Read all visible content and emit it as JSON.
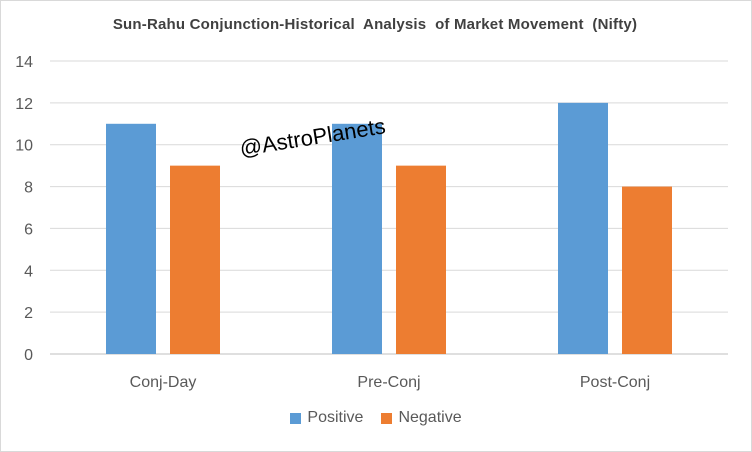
{
  "chart_data": {
    "type": "bar",
    "title": "Sun-Rahu Conjunction-Historical  Analysis  of Market Movement  (Nifty)",
    "categories": [
      "Conj-Day",
      "Pre-Conj",
      "Post-Conj"
    ],
    "series": [
      {
        "name": "Positive",
        "values": [
          11,
          11,
          12
        ],
        "color": "#5b9bd5"
      },
      {
        "name": "Negative",
        "values": [
          9,
          9,
          8
        ],
        "color": "#ed7d31"
      }
    ],
    "yticks": [
      "0",
      "2",
      "4",
      "6",
      "8",
      "10",
      "12",
      "14"
    ],
    "ylim": [
      0,
      14
    ],
    "grid": true,
    "legend_position": "bottom",
    "watermark": "@AstroPlanets"
  }
}
